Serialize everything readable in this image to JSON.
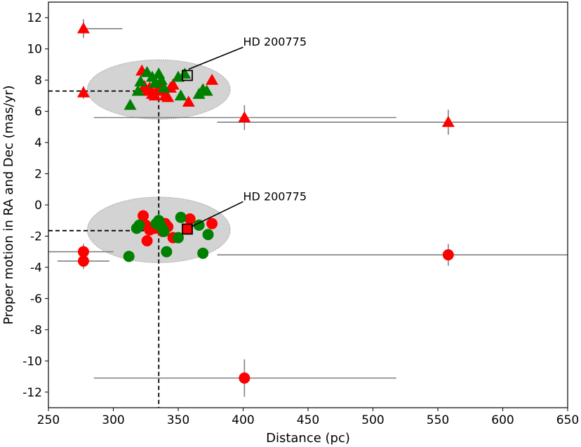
{
  "chart_data": {
    "type": "scatter",
    "title": "",
    "xlabel": "Distance (pc)",
    "ylabel": "Proper motion in RA and Dec (mas/yr)",
    "xlim": [
      250,
      650
    ],
    "ylim": [
      -13,
      13
    ],
    "xticks": [
      250,
      300,
      350,
      400,
      450,
      500,
      550,
      600,
      650
    ],
    "yticks": [
      12,
      10,
      8,
      6,
      4,
      2,
      0,
      -2,
      -4,
      -6,
      -8,
      -10,
      -12
    ],
    "grid": false,
    "legend": "none",
    "colors": {
      "red": "#ff0000",
      "green": "#008000",
      "errorbar": "#808080",
      "ellipse_fill": "#d3d3d3",
      "ellipse_edge": "#999999"
    },
    "reference_lines": {
      "distance": 335,
      "pm_ra": 7.3,
      "pm_dec": -1.65
    },
    "ellipses": [
      {
        "center": [
          335,
          7.4
        ],
        "half_width": 55,
        "half_height": 1.9
      },
      {
        "center": [
          335,
          -1.6
        ],
        "half_width": 55,
        "half_height": 2.1
      }
    ],
    "annotations": [
      {
        "text": "HD 200775",
        "text_at": [
          400,
          10.2
        ],
        "arrow_to": [
          358,
          8.7
        ]
      },
      {
        "text": "HD 200775",
        "text_at": [
          400,
          0.3
        ],
        "arrow_to": [
          360,
          -1.4
        ]
      }
    ],
    "series": [
      {
        "name": "",
        "marker": "triangle",
        "color": "red",
        "points": [
          {
            "x": 277,
            "y": 11.3,
            "xerr": [
              277,
              307
            ],
            "yerr": 0.6
          },
          {
            "x": 277,
            "y": 7.2,
            "yerr": 0.4
          },
          {
            "x": 401,
            "y": 5.6,
            "xerr": [
              285,
              518
            ],
            "yerr": 0.8
          },
          {
            "x": 558,
            "y": 5.3,
            "xerr": [
              380,
              810
            ],
            "yerr": 0.8
          },
          {
            "x": 322,
            "y": 8.6
          },
          {
            "x": 324,
            "y": 7.6
          },
          {
            "x": 326,
            "y": 7.3
          },
          {
            "x": 328,
            "y": 7.5
          },
          {
            "x": 330,
            "y": 7.1
          },
          {
            "x": 332,
            "y": 7.0
          },
          {
            "x": 334,
            "y": 7.4
          },
          {
            "x": 336,
            "y": 7.8
          },
          {
            "x": 338,
            "y": 7.3
          },
          {
            "x": 340,
            "y": 7.0
          },
          {
            "x": 342,
            "y": 6.9
          },
          {
            "x": 344,
            "y": 7.5
          },
          {
            "x": 346,
            "y": 7.7
          },
          {
            "x": 358,
            "y": 6.6
          },
          {
            "x": 376,
            "y": 8.0
          }
        ]
      },
      {
        "name": "",
        "marker": "triangle",
        "color": "green",
        "points": [
          {
            "x": 313,
            "y": 6.4
          },
          {
            "x": 319,
            "y": 7.3
          },
          {
            "x": 321,
            "y": 7.9
          },
          {
            "x": 326,
            "y": 8.5
          },
          {
            "x": 330,
            "y": 8.2
          },
          {
            "x": 332,
            "y": 7.8
          },
          {
            "x": 335,
            "y": 8.4
          },
          {
            "x": 337,
            "y": 8.0
          },
          {
            "x": 339,
            "y": 7.5
          },
          {
            "x": 350,
            "y": 8.2
          },
          {
            "x": 352,
            "y": 7.0
          },
          {
            "x": 355,
            "y": 8.4
          },
          {
            "x": 366,
            "y": 7.1
          },
          {
            "x": 369,
            "y": 7.4
          },
          {
            "x": 372,
            "y": 7.3
          }
        ]
      },
      {
        "name": "",
        "marker": "circle",
        "color": "red",
        "points": [
          {
            "x": 277,
            "y": -3.0,
            "xerr": [
              250,
              300
            ],
            "yerr": 0.5
          },
          {
            "x": 277,
            "y": -3.6,
            "xerr": [
              257,
              297
            ],
            "yerr": 0.5
          },
          {
            "x": 401,
            "y": -11.1,
            "xerr": [
              285,
              518
            ],
            "yerr": 1.2
          },
          {
            "x": 558,
            "y": -3.2,
            "xerr": [
              380,
              810
            ],
            "yerr": 0.7
          },
          {
            "x": 323,
            "y": -0.7
          },
          {
            "x": 325,
            "y": -1.3
          },
          {
            "x": 326,
            "y": -2.3
          },
          {
            "x": 328,
            "y": -1.6
          },
          {
            "x": 332,
            "y": -1.5
          },
          {
            "x": 334,
            "y": -1.4
          },
          {
            "x": 336,
            "y": -1.1
          },
          {
            "x": 338,
            "y": -1.7
          },
          {
            "x": 340,
            "y": -1.2
          },
          {
            "x": 342,
            "y": -1.4
          },
          {
            "x": 346,
            "y": -2.1
          },
          {
            "x": 359,
            "y": -0.9
          },
          {
            "x": 376,
            "y": -1.2
          }
        ]
      },
      {
        "name": "",
        "marker": "circle",
        "color": "green",
        "points": [
          {
            "x": 312,
            "y": -3.3
          },
          {
            "x": 318,
            "y": -1.5
          },
          {
            "x": 320,
            "y": -1.3
          },
          {
            "x": 333,
            "y": -1.2
          },
          {
            "x": 335,
            "y": -1.0
          },
          {
            "x": 337,
            "y": -1.4
          },
          {
            "x": 339,
            "y": -1.7
          },
          {
            "x": 341,
            "y": -3.0
          },
          {
            "x": 350,
            "y": -2.1
          },
          {
            "x": 352,
            "y": -0.8
          },
          {
            "x": 366,
            "y": -1.3
          },
          {
            "x": 369,
            "y": -3.1
          },
          {
            "x": 373,
            "y": -1.9
          }
        ]
      }
    ],
    "highlight": {
      "name": "HD 200775",
      "marker": "square",
      "points": [
        {
          "x": 357,
          "y": 8.3,
          "filled": false
        },
        {
          "x": 357,
          "y": -1.55,
          "filled": true
        }
      ]
    }
  }
}
